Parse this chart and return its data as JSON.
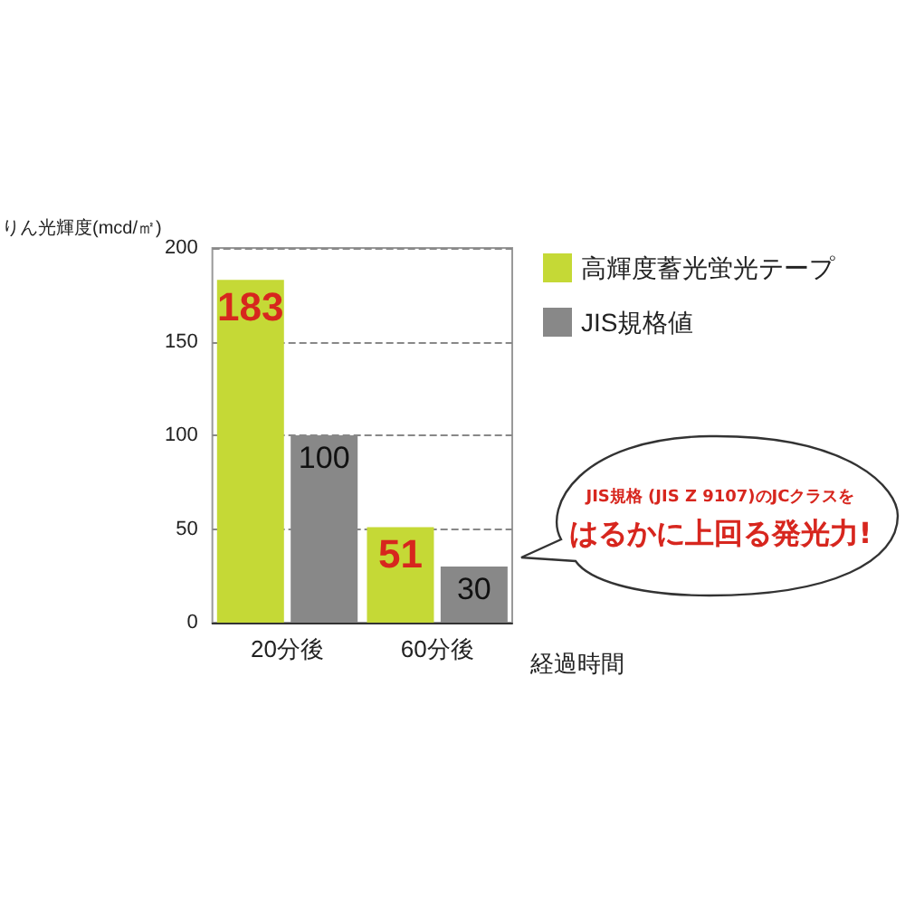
{
  "chart_data": {
    "type": "bar",
    "ylabel": "りん光輝度(mcd/㎡)",
    "xlabel": "経過時間",
    "categories": [
      "20分後",
      "60分後"
    ],
    "series": [
      {
        "name": "高輝度蓄光蛍光テープ",
        "color": "#c5d936",
        "values": [
          183,
          51
        ]
      },
      {
        "name": "JIS規格値",
        "color": "#888888",
        "values": [
          100,
          30
        ]
      }
    ],
    "ylim": [
      0,
      200
    ],
    "yticks": [
      0,
      50,
      100,
      150,
      200
    ],
    "grid": "y",
    "legend": "top right",
    "data_labels": true,
    "annotations": [
      "JIS規格 (JIS Z 9107)のJCクラスを",
      "はるかに上回る発光力!"
    ]
  }
}
